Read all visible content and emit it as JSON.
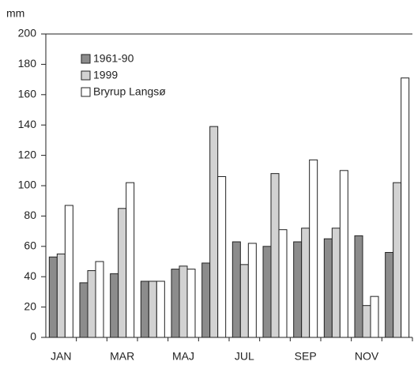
{
  "chart_data": {
    "type": "bar",
    "y_label": "mm",
    "categories": [
      "JAN",
      null,
      "MAR",
      null,
      "MAJ",
      null,
      "JUL",
      null,
      "SEP",
      null,
      "NOV",
      null
    ],
    "series": [
      {
        "name": "1961-90",
        "color": "#8c8c8c",
        "values": [
          53,
          36,
          42,
          37,
          45,
          49,
          63,
          60,
          63,
          65,
          67,
          56
        ]
      },
      {
        "name": "1999",
        "color": "#d2d2d2",
        "values": [
          55,
          44,
          85,
          37,
          47,
          139,
          48,
          108,
          72,
          72,
          21,
          102
        ]
      },
      {
        "name": "Bryrup Langsø",
        "color": "#ffffff",
        "values": [
          87,
          50,
          102,
          37,
          45,
          106,
          62,
          71,
          117,
          110,
          27,
          171
        ]
      }
    ],
    "ylim": [
      0,
      200
    ],
    "yticks": [
      0,
      20,
      40,
      60,
      80,
      100,
      120,
      140,
      160,
      180,
      200
    ],
    "legend": "top-left"
  }
}
